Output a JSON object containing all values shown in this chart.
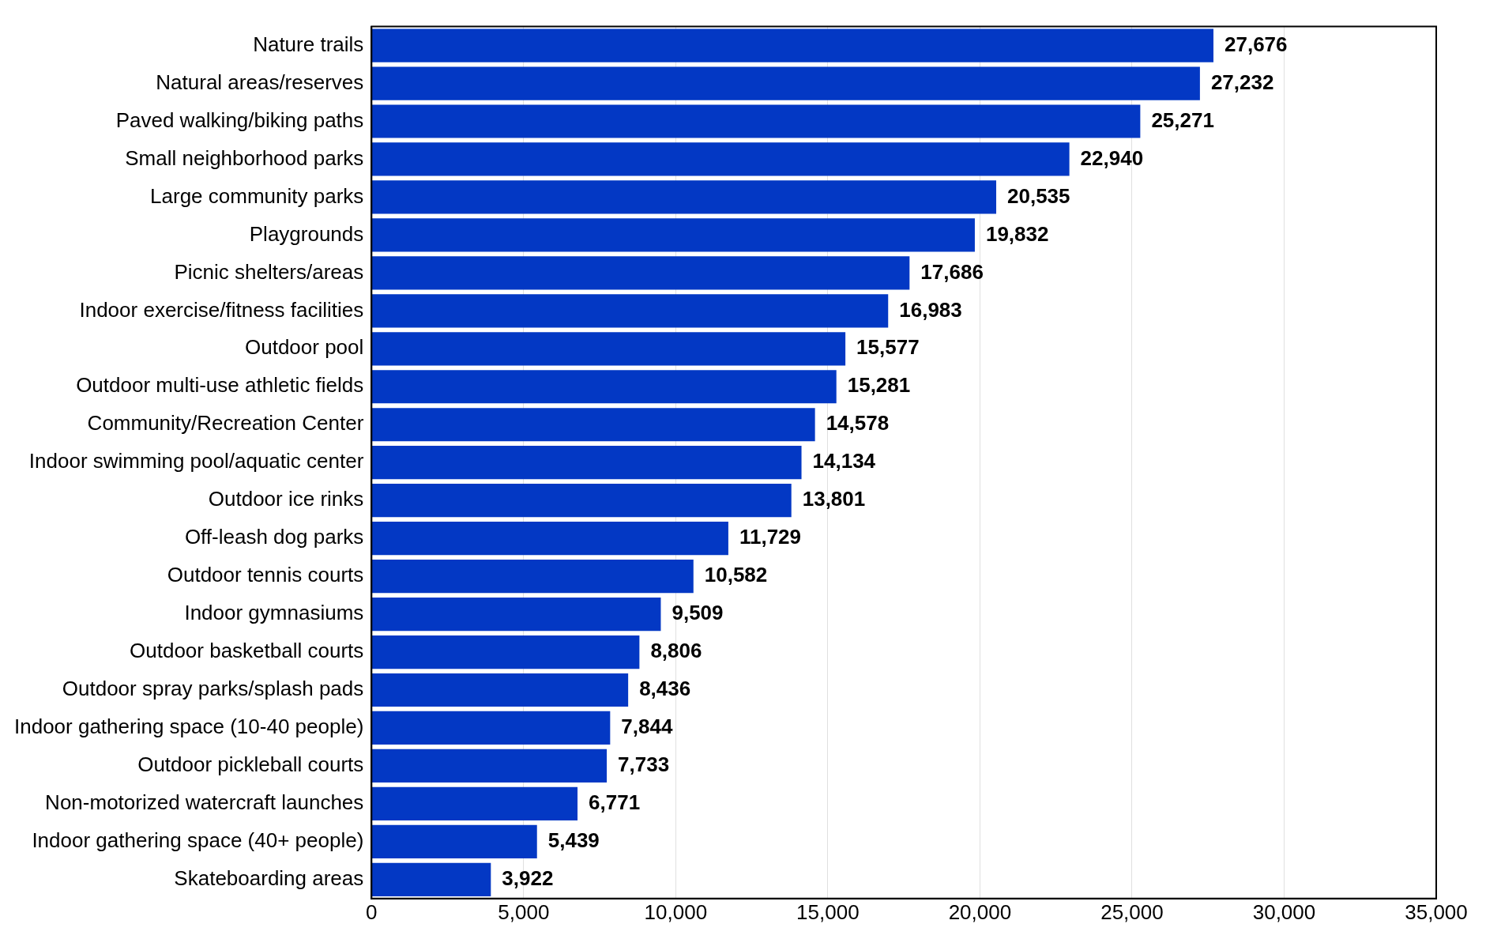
{
  "chart_data": {
    "type": "bar",
    "orientation": "horizontal",
    "categories": [
      "Nature trails",
      "Natural areas/reserves",
      "Paved walking/biking paths",
      "Small neighborhood parks",
      "Large community parks",
      "Playgrounds",
      "Picnic shelters/areas",
      "Indoor exercise/fitness facilities",
      "Outdoor pool",
      "Outdoor multi-use athletic fields",
      "Community/Recreation Center",
      "Indoor swimming pool/aquatic center",
      "Outdoor ice rinks",
      "Off-leash dog parks",
      "Outdoor tennis courts",
      "Indoor gymnasiums",
      "Outdoor basketball courts",
      "Outdoor spray parks/splash pads",
      "Indoor gathering space (10-40 people)",
      "Outdoor pickleball courts",
      "Non-motorized watercraft launches",
      "Indoor gathering space (40+ people)",
      "Skateboarding areas"
    ],
    "values": [
      27676,
      27232,
      25271,
      22940,
      20535,
      19832,
      17686,
      16983,
      15577,
      15281,
      14578,
      14134,
      13801,
      11729,
      10582,
      9509,
      8806,
      8436,
      7844,
      7733,
      6771,
      5439,
      3922
    ],
    "color": "#0338c4",
    "xlim": [
      0,
      35000
    ],
    "xticks": [
      0,
      {
        "value": 5000,
        "label": "5,000"
      },
      {
        "value": 10000,
        "label": "10,000"
      },
      {
        "value": 15000,
        "label": "15,000"
      },
      {
        "value": 20000,
        "label": "20,000"
      },
      {
        "value": 25000,
        "label": "25,000"
      },
      {
        "value": 30000,
        "label": "30,000"
      },
      {
        "value": 35000,
        "label": "35,000"
      }
    ],
    "value_labels": [
      "27,676",
      "27,232",
      "25,271",
      "22,940",
      "20,535",
      "19,832",
      "17,686",
      "16,983",
      "15,577",
      "15,281",
      "14,578",
      "14,134",
      "13,801",
      "11,729",
      "10,582",
      "9,509",
      "8,806",
      "8,436",
      "7,844",
      "7,733",
      "6,771",
      "5,439",
      "3,922"
    ],
    "grid": "x",
    "legend": false
  }
}
